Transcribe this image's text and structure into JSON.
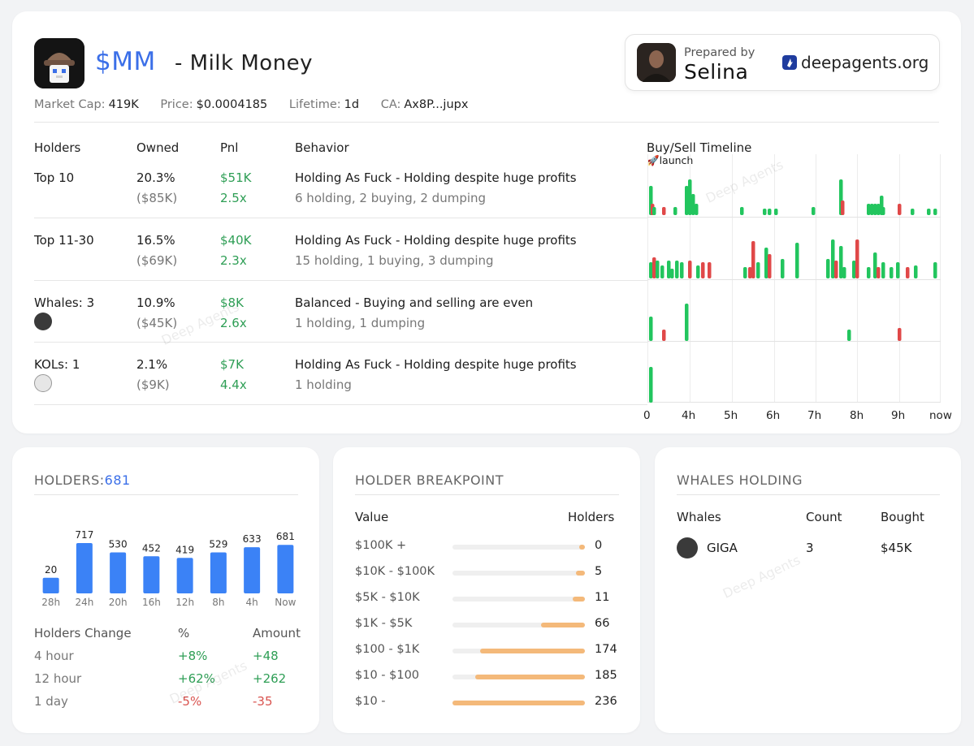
{
  "header": {
    "symbol": "$MM",
    "name": "- Milk Money",
    "stats": [
      {
        "label": "Market Cap:",
        "value": "419K"
      },
      {
        "label": "Price:",
        "value": "$0.0004185"
      },
      {
        "label": "Lifetime:",
        "value": "1d"
      },
      {
        "label": "CA:",
        "value": "Ax8P...jupx"
      }
    ],
    "prepared_label": "Prepared by",
    "prepared_name": "Selina",
    "brand": "deepagents.org"
  },
  "table": {
    "columns": [
      "Holders",
      "Owned",
      "Pnl",
      "Behavior",
      "Buy/Sell Timeline"
    ],
    "launch_label": "launch",
    "rows": [
      {
        "holder": "Top 10",
        "owned_pct": "20.3%",
        "owned_usd": "($85K)",
        "pnl_usd": "$51K",
        "pnl_x": "2.5x",
        "behavior": "Holding As Fuck - Holding despite huge profits",
        "detail": "6 holding, 2 buying, 2 dumping"
      },
      {
        "holder": "Top 11-30",
        "owned_pct": "16.5%",
        "owned_usd": "($69K)",
        "pnl_usd": "$40K",
        "pnl_x": "2.3x",
        "behavior": "Holding As Fuck - Holding despite huge profits",
        "detail": "15 holding, 1 buying, 3 dumping"
      },
      {
        "holder": "Whales: 3",
        "owned_pct": "10.9%",
        "owned_usd": "($45K)",
        "pnl_usd": "$8K",
        "pnl_x": "2.6x",
        "behavior": "Balanced - Buying and selling are even",
        "detail": "1 holding, 1 dumping"
      },
      {
        "holder": "KOLs: 1",
        "owned_pct": "2.1%",
        "owned_usd": "($9K)",
        "pnl_usd": "$7K",
        "pnl_x": "4.4x",
        "behavior": "Holding As Fuck - Holding despite huge profits",
        "detail": "1 holding"
      }
    ],
    "timeline_axis": [
      "0",
      "4h",
      "5h",
      "6h",
      "7h",
      "8h",
      "9h",
      "now"
    ]
  },
  "holders_card": {
    "title_prefix": "HOLDERS:",
    "title_count": "681",
    "chart_data": {
      "type": "bar",
      "categories": [
        "28h",
        "24h",
        "20h",
        "16h",
        "12h",
        "8h",
        "4h",
        "Now"
      ],
      "values": [
        20,
        717,
        530,
        452,
        419,
        529,
        633,
        681
      ],
      "data_labels": [
        "20",
        "717",
        "530",
        "452",
        "419",
        "529",
        "633",
        "681"
      ],
      "color": "#3b82f6"
    },
    "change_headers": [
      "Holders Change",
      "%",
      "Amount"
    ],
    "changes": [
      {
        "period": "4 hour",
        "pct": "+8%",
        "amount": "+48",
        "trend": "up"
      },
      {
        "period": "12 hour",
        "pct": "+62%",
        "amount": "+262",
        "trend": "up"
      },
      {
        "period": "1 day",
        "pct": "-5%",
        "amount": "-35",
        "trend": "down"
      }
    ]
  },
  "breakpoint_card": {
    "title": "HOLDER BREAKPOINT",
    "head_value": "Value",
    "head_holders": "Holders",
    "rows": [
      {
        "label": "$100K +",
        "count": "0",
        "fill": 0.04
      },
      {
        "label": "$10K - $100K",
        "count": "5",
        "fill": 0.07
      },
      {
        "label": "$5K - $10K",
        "count": "11",
        "fill": 0.09
      },
      {
        "label": "$1K - $5K",
        "count": "66",
        "fill": 0.33
      },
      {
        "label": "$100 - $1K",
        "count": "174",
        "fill": 0.79
      },
      {
        "label": "$10 - $100",
        "count": "185",
        "fill": 0.83
      },
      {
        "label": "$10 -",
        "count": "236",
        "fill": 1.0
      }
    ]
  },
  "whales_card": {
    "title": "WHALES HOLDING",
    "headers": [
      "Whales",
      "Count",
      "Bought"
    ],
    "rows": [
      {
        "name": "GIGA",
        "count": "3",
        "bought": "$45K"
      }
    ]
  },
  "watermark": "Deep Agents",
  "colors": {
    "accent": "#3b6fe8",
    "buy": "#22c55e",
    "sell": "#e04848",
    "bar": "#3b82f6",
    "breakpoint": "#f4b97a"
  }
}
